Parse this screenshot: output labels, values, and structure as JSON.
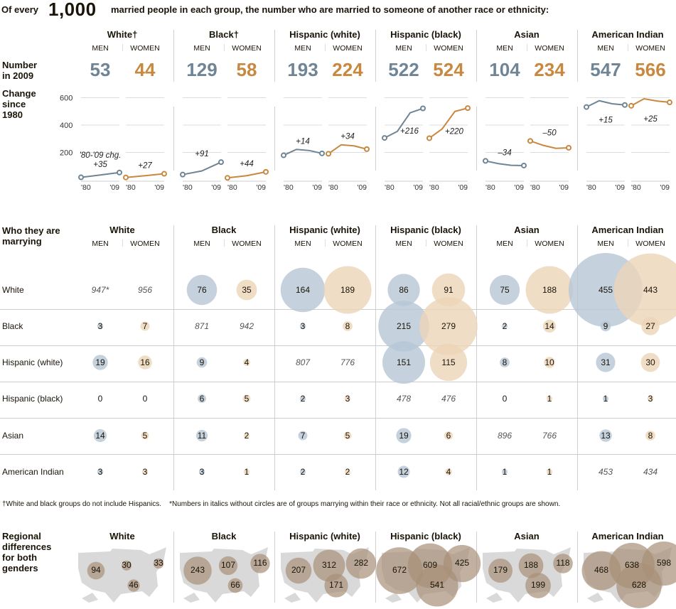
{
  "title": {
    "prefix": "Of every",
    "big_number": "1,000",
    "suffix": "married people in each group, the number who are married to someone of another race or ethnicity:"
  },
  "colors": {
    "men": "#6f8595",
    "women": "#c88840",
    "men_bubble": "#b7c7d6",
    "women_bubble": "#ecd5b6",
    "map_bubble": "#a89078",
    "map_land": "#d9d9d9"
  },
  "sex_labels": {
    "men": "MEN",
    "women": "WOMEN"
  },
  "section1": {
    "row_label_number": "Number in 2009",
    "row_label_change": "Change since 1980",
    "groups": [
      {
        "name": "White†",
        "men": "53",
        "women": "44"
      },
      {
        "name": "Black†",
        "men": "129",
        "women": "58"
      },
      {
        "name": "Hispanic (white)",
        "men": "193",
        "women": "224"
      },
      {
        "name": "Hispanic (black)",
        "men": "522",
        "women": "524"
      },
      {
        "name": "Asian",
        "men": "104",
        "women": "234"
      },
      {
        "name": "American Indian",
        "men": "547",
        "women": "566"
      }
    ]
  },
  "chart_data": [
    {
      "type": "line",
      "title": "Change since 1980",
      "x": [
        "'80",
        "'09"
      ],
      "x_tick_labels": [
        "'80",
        "'09"
      ],
      "yticks": [
        200,
        400,
        600
      ],
      "ylim": [
        0,
        650
      ],
      "grid": true,
      "annotation_first": "'80-'09 chg.",
      "series": [
        {
          "name": "White men",
          "sex": "men",
          "values": [
            18,
            35,
            53
          ],
          "change": "+35"
        },
        {
          "name": "White women",
          "sex": "women",
          "values": [
            17,
            30,
            44
          ],
          "change": "+27"
        },
        {
          "name": "Black men",
          "sex": "men",
          "values": [
            38,
            65,
            129
          ],
          "change": "+91"
        },
        {
          "name": "Black women",
          "sex": "women",
          "values": [
            14,
            30,
            58
          ],
          "change": "+44"
        },
        {
          "name": "Hispanic (white) men",
          "sex": "men",
          "values": [
            179,
            222,
            214,
            193
          ],
          "change": "+14"
        },
        {
          "name": "Hispanic (white) women",
          "sex": "women",
          "values": [
            190,
            256,
            248,
            224
          ],
          "change": "+34"
        },
        {
          "name": "Hispanic (black) men",
          "sex": "men",
          "values": [
            306,
            354,
            490,
            522
          ],
          "change": "+216"
        },
        {
          "name": "Hispanic (black) women",
          "sex": "women",
          "values": [
            304,
            372,
            500,
            524
          ],
          "change": "+220"
        },
        {
          "name": "Asian men",
          "sex": "men",
          "values": [
            138,
            118,
            106,
            104
          ],
          "change": "–34"
        },
        {
          "name": "Asian women",
          "sex": "women",
          "values": [
            284,
            252,
            230,
            234
          ],
          "change": "–50"
        },
        {
          "name": "American Indian men",
          "sex": "men",
          "values": [
            532,
            578,
            556,
            547
          ],
          "change": "+15"
        },
        {
          "name": "American Indian women",
          "sex": "women",
          "values": [
            541,
            592,
            576,
            566
          ],
          "change": "+25"
        }
      ]
    },
    {
      "type": "scatter",
      "title": "Who they are marrying",
      "rows": [
        "White",
        "Black",
        "Hispanic (white)",
        "Hispanic (black)",
        "Asian",
        "American Indian"
      ],
      "groups": [
        "White",
        "Black",
        "Hispanic (white)",
        "Hispanic (black)",
        "Asian",
        "American Indian"
      ],
      "cells": [
        [
          {
            "m": "947*",
            "w": "956",
            "mi": true,
            "wi": true
          },
          {
            "m": "76",
            "w": "35"
          },
          {
            "m": "164",
            "w": "189"
          },
          {
            "m": "86",
            "w": "91"
          },
          {
            "m": "75",
            "w": "188"
          },
          {
            "m": "455",
            "w": "443"
          }
        ],
        [
          {
            "m": "3",
            "w": "7"
          },
          {
            "m": "871",
            "w": "942",
            "mi": true,
            "wi": true
          },
          {
            "m": "3",
            "w": "8"
          },
          {
            "m": "215",
            "w": "279"
          },
          {
            "m": "2",
            "w": "14"
          },
          {
            "m": "9",
            "w": "27"
          }
        ],
        [
          {
            "m": "19",
            "w": "16"
          },
          {
            "m": "9",
            "w": "4"
          },
          {
            "m": "807",
            "w": "776",
            "mi": true,
            "wi": true
          },
          {
            "m": "151",
            "w": "115"
          },
          {
            "m": "8",
            "w": "10"
          },
          {
            "m": "31",
            "w": "30"
          }
        ],
        [
          {
            "m": "0",
            "w": "0"
          },
          {
            "m": "6",
            "w": "5"
          },
          {
            "m": "2",
            "w": "3"
          },
          {
            "m": "478",
            "w": "476",
            "mi": true,
            "wi": true
          },
          {
            "m": "0",
            "w": "1"
          },
          {
            "m": "1",
            "w": "3"
          }
        ],
        [
          {
            "m": "14",
            "w": "5"
          },
          {
            "m": "11",
            "w": "2"
          },
          {
            "m": "7",
            "w": "5"
          },
          {
            "m": "19",
            "w": "6"
          },
          {
            "m": "896",
            "w": "766",
            "mi": true,
            "wi": true
          },
          {
            "m": "13",
            "w": "8"
          }
        ],
        [
          {
            "m": "3",
            "w": "3"
          },
          {
            "m": "3",
            "w": "1"
          },
          {
            "m": "2",
            "w": "2"
          },
          {
            "m": "12",
            "w": "4"
          },
          {
            "m": "1",
            "w": "1"
          },
          {
            "m": "453",
            "w": "434",
            "mi": true,
            "wi": true
          }
        ]
      ]
    },
    {
      "type": "scatter",
      "title": "Regional differences for both genders",
      "regions": [
        "West",
        "Midwest",
        "Northeast",
        "South"
      ],
      "groups": [
        {
          "name": "White",
          "values": {
            "West": 94,
            "Midwest": 30,
            "Northeast": 33,
            "South": 46
          }
        },
        {
          "name": "Black",
          "values": {
            "West": 243,
            "Midwest": 107,
            "Northeast": 116,
            "South": 66
          }
        },
        {
          "name": "Hispanic (white)",
          "values": {
            "West": 207,
            "Midwest": 312,
            "Northeast": 282,
            "South": 171
          }
        },
        {
          "name": "Hispanic (black)",
          "values": {
            "West": 672,
            "Midwest": 609,
            "Northeast": 425,
            "South": 541
          }
        },
        {
          "name": "Asian",
          "values": {
            "West": 179,
            "Midwest": 188,
            "Northeast": 118,
            "South": 199
          }
        },
        {
          "name": "American Indian",
          "values": {
            "West": 468,
            "Midwest": 638,
            "Northeast": 598,
            "South": 628
          }
        }
      ]
    }
  ],
  "section2": {
    "row_header": "Who they are marrying",
    "group_names": [
      "White",
      "Black",
      "Hispanic (white)",
      "Hispanic (black)",
      "Asian",
      "American Indian"
    ],
    "row_labels": [
      "White",
      "Black",
      "Hispanic (white)",
      "Hispanic (black)",
      "Asian",
      "American Indian"
    ]
  },
  "footnote": "†White and black groups do not include Hispanics.    *Numbers in italics without circles are of groups marrying within their race or ethnicity. Not all racial/ethnic groups are shown.",
  "section3": {
    "row_header": "Regional differences for both genders",
    "group_names": [
      "White",
      "Black",
      "Hispanic (white)",
      "Hispanic (black)",
      "Asian",
      "American Indian"
    ]
  }
}
